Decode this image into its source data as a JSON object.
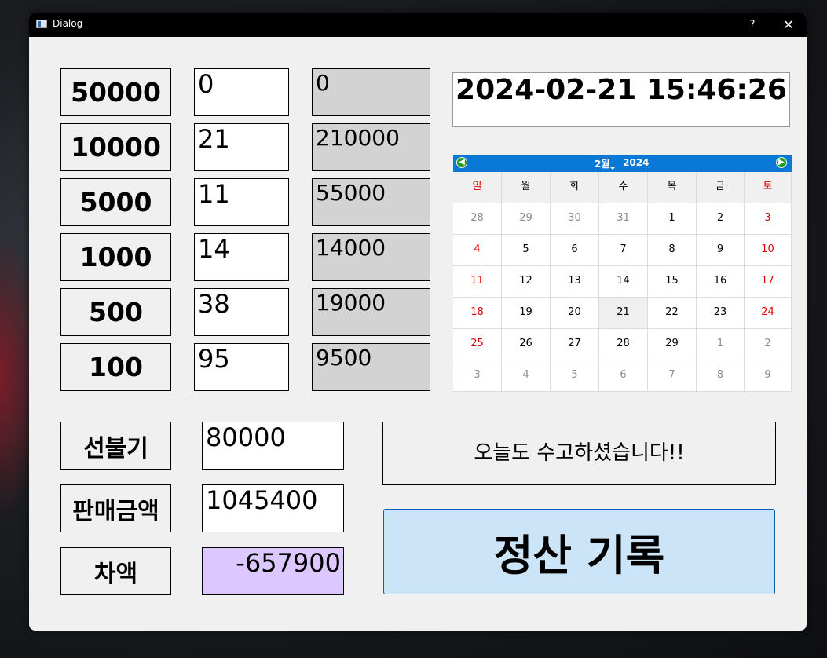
{
  "window": {
    "title": "Dialog",
    "help_label": "?",
    "close_label": "✕"
  },
  "denominations": [
    {
      "label": "50000",
      "count": "0",
      "amount": "0"
    },
    {
      "label": "10000",
      "count": "21",
      "amount": "210000"
    },
    {
      "label": "5000",
      "count": "11",
      "amount": "55000"
    },
    {
      "label": "1000",
      "count": "14",
      "amount": "14000"
    },
    {
      "label": "500",
      "count": "38",
      "amount": "19000"
    },
    {
      "label": "100",
      "count": "95",
      "amount": "9500"
    }
  ],
  "summary": {
    "prepaid_label": "선불기",
    "prepaid_value": "80000",
    "sales_label": "판매금액",
    "sales_value": "1045400",
    "diff_label": "차액",
    "diff_value": "-657900"
  },
  "clock": "2024-02-21 15:46:26",
  "calendar": {
    "month": "2월",
    "year": "2024",
    "weekdays": [
      "일",
      "월",
      "화",
      "수",
      "목",
      "금",
      "토"
    ],
    "weeks": [
      [
        "28",
        "29",
        "30",
        "31",
        "1",
        "2",
        "3"
      ],
      [
        "4",
        "5",
        "6",
        "7",
        "8",
        "9",
        "10"
      ],
      [
        "11",
        "12",
        "13",
        "14",
        "15",
        "16",
        "17"
      ],
      [
        "18",
        "19",
        "20",
        "21",
        "22",
        "23",
        "24"
      ],
      [
        "25",
        "26",
        "27",
        "28",
        "29",
        "1",
        "2"
      ],
      [
        "3",
        "4",
        "5",
        "6",
        "7",
        "8",
        "9"
      ]
    ],
    "selected": "21"
  },
  "message": "오늘도 수고하셨습니다!!",
  "record_button": "정산 기록",
  "colors": {
    "readonly_bg": "#d3d3d3",
    "diff_bg": "#dcc8ff",
    "calendar_header": "#0a78d7",
    "weekend_red": "#e00000",
    "record_button_bg": "#cce4f7"
  }
}
